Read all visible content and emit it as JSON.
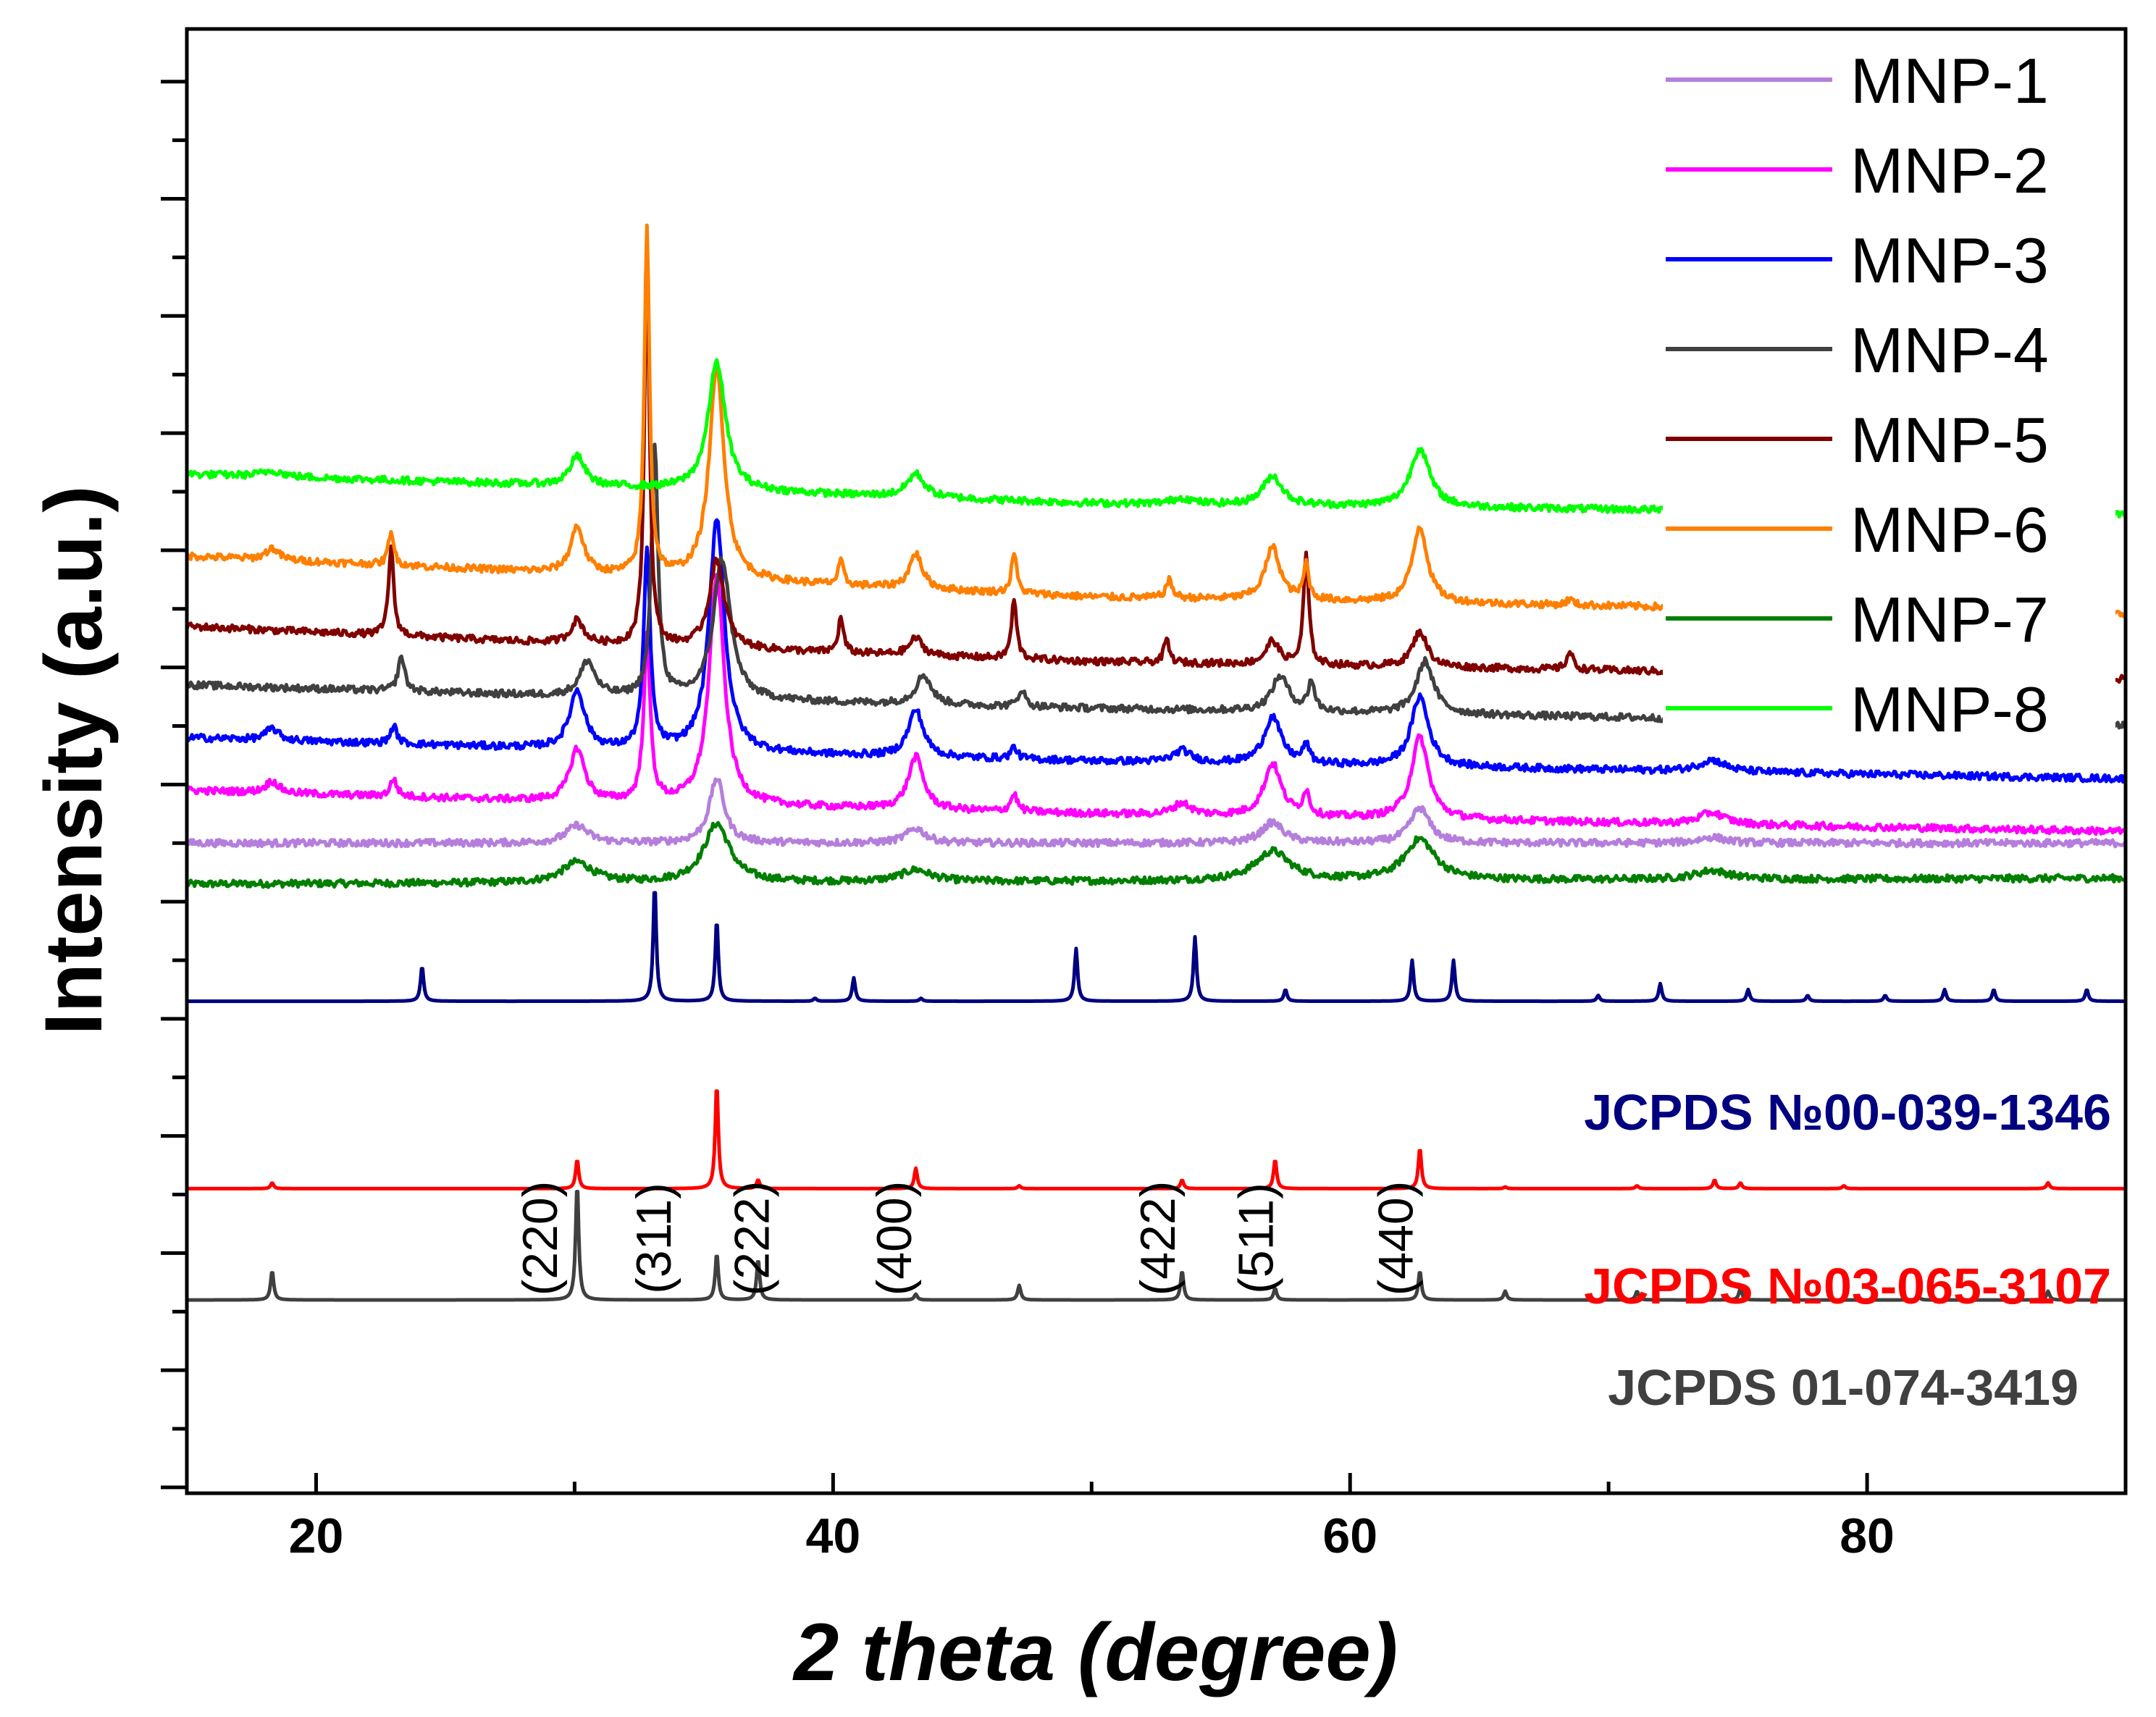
{
  "chart_data": {
    "type": "line",
    "title": "",
    "xlabel": "2 theta (degree)",
    "ylabel": "Intensity (a.u.)",
    "xlim": [
      15,
      90
    ],
    "x_ticks": [
      "20",
      "40",
      "60",
      "80"
    ],
    "y_ticks_labeled": false,
    "legend_position": "top-right",
    "legend": [
      {
        "name": "MNP-1",
        "color": "#b57edc"
      },
      {
        "name": "MNP-2",
        "color": "#ff00ff"
      },
      {
        "name": "MNP-3",
        "color": "#0000ff"
      },
      {
        "name": "MNP-4",
        "color": "#404040"
      },
      {
        "name": "MNP-5",
        "color": "#800000"
      },
      {
        "name": "MNP-6",
        "color": "#ff7f00"
      },
      {
        "name": "MNP-7",
        "color": "#007f00"
      },
      {
        "name": "MNP-8",
        "color": "#00ff00"
      }
    ],
    "series": [
      {
        "name": "MNP-7",
        "color": "#007f00",
        "offset": 12.4,
        "baseline": [
          [
            15,
            0.0
          ],
          [
            90,
            0.1
          ]
        ],
        "peaks": [
          [
            30.1,
            0.35,
            0.7
          ],
          [
            35.5,
            1.0,
            0.6
          ],
          [
            43.2,
            0.2,
            0.7
          ],
          [
            57.0,
            0.5,
            0.8
          ],
          [
            62.7,
            0.7,
            0.7
          ],
          [
            74.0,
            0.15,
            0.8
          ]
        ]
      },
      {
        "name": "MNP-1",
        "color": "#b57edc",
        "offset": 13.1,
        "baseline": [
          [
            15,
            0.0
          ],
          [
            90,
            0.0
          ]
        ],
        "peaks": [
          [
            30.1,
            0.3,
            0.5
          ],
          [
            35.5,
            1.1,
            0.35
          ],
          [
            43.2,
            0.25,
            0.45
          ],
          [
            57.0,
            0.35,
            0.5
          ],
          [
            62.7,
            0.6,
            0.45
          ],
          [
            74.0,
            0.1,
            0.6
          ]
        ]
      },
      {
        "name": "MNP-2",
        "color": "#ff00ff",
        "offset": 13.8,
        "baseline": [
          [
            15,
            0.2
          ],
          [
            30,
            0.0
          ],
          [
            50,
            -0.2
          ],
          [
            90,
            -0.5
          ]
        ],
        "peaks": [
          [
            18.3,
            0.2,
            0.3
          ],
          [
            23.0,
            0.3,
            0.15
          ],
          [
            30.1,
            0.9,
            0.35
          ],
          [
            32.8,
            2.8,
            0.15
          ],
          [
            35.5,
            3.9,
            0.35
          ],
          [
            43.2,
            0.9,
            0.35
          ],
          [
            47.0,
            0.3,
            0.15
          ],
          [
            53.5,
            0.2,
            0.4
          ],
          [
            57.0,
            0.9,
            0.4
          ],
          [
            58.3,
            0.4,
            0.15
          ],
          [
            62.7,
            1.4,
            0.4
          ],
          [
            74.0,
            0.2,
            0.6
          ]
        ]
      },
      {
        "name": "MNP-3",
        "color": "#0000ff",
        "offset": 14.7,
        "baseline": [
          [
            15,
            0.2
          ],
          [
            30,
            0.0
          ],
          [
            50,
            -0.2
          ],
          [
            90,
            -0.5
          ]
        ],
        "peaks": [
          [
            18.3,
            0.2,
            0.3
          ],
          [
            23.0,
            0.3,
            0.15
          ],
          [
            30.1,
            1.0,
            0.35
          ],
          [
            32.8,
            3.4,
            0.15
          ],
          [
            35.5,
            4.0,
            0.35
          ],
          [
            43.2,
            0.8,
            0.35
          ],
          [
            47.0,
            0.2,
            0.15
          ],
          [
            53.5,
            0.2,
            0.4
          ],
          [
            57.0,
            0.8,
            0.4
          ],
          [
            58.3,
            0.3,
            0.15
          ],
          [
            62.7,
            1.2,
            0.4
          ],
          [
            74.0,
            0.2,
            0.6
          ]
        ]
      },
      {
        "name": "MNP-4",
        "color": "#404040",
        "offset": 15.6,
        "baseline": [
          [
            15,
            0.2
          ],
          [
            30,
            0.0
          ],
          [
            50,
            -0.2
          ],
          [
            90,
            -0.5
          ]
        ],
        "peaks": [
          [
            23.3,
            0.6,
            0.15
          ],
          [
            30.5,
            0.6,
            0.35
          ],
          [
            33.1,
            4.3,
            0.15
          ],
          [
            35.7,
            2.4,
            0.4
          ],
          [
            43.5,
            0.5,
            0.35
          ],
          [
            47.3,
            0.3,
            0.15
          ],
          [
            57.3,
            0.6,
            0.4
          ],
          [
            58.5,
            0.5,
            0.15
          ],
          [
            62.9,
            0.9,
            0.4
          ]
        ]
      },
      {
        "name": "MNP-5",
        "color": "#800000",
        "offset": 16.5,
        "baseline": [
          [
            15,
            0.3
          ],
          [
            30,
            0.0
          ],
          [
            50,
            -0.3
          ],
          [
            90,
            -0.6
          ]
        ],
        "peaks": [
          [
            22.9,
            1.5,
            0.12
          ],
          [
            30.1,
            0.4,
            0.3
          ],
          [
            32.8,
            6.5,
            0.12
          ],
          [
            35.5,
            1.5,
            0.35
          ],
          [
            40.3,
            0.6,
            0.12
          ],
          [
            43.2,
            0.3,
            0.3
          ],
          [
            47.0,
            1.0,
            0.12
          ],
          [
            52.9,
            0.4,
            0.12
          ],
          [
            57.0,
            0.4,
            0.3
          ],
          [
            58.3,
            1.9,
            0.12
          ],
          [
            62.7,
            0.6,
            0.35
          ],
          [
            68.5,
            0.3,
            0.15
          ]
        ]
      },
      {
        "name": "MNP-6",
        "color": "#ff7f00",
        "offset": 17.6,
        "baseline": [
          [
            15,
            0.4
          ],
          [
            30,
            0.1
          ],
          [
            50,
            -0.3
          ],
          [
            90,
            -0.6
          ]
        ],
        "peaks": [
          [
            18.3,
            0.2,
            0.3
          ],
          [
            22.9,
            0.6,
            0.12
          ],
          [
            30.1,
            0.8,
            0.3
          ],
          [
            32.8,
            5.9,
            0.12
          ],
          [
            35.5,
            3.6,
            0.35
          ],
          [
            40.3,
            0.4,
            0.12
          ],
          [
            43.2,
            0.6,
            0.3
          ],
          [
            47.0,
            0.7,
            0.12
          ],
          [
            53.0,
            0.3,
            0.15
          ],
          [
            57.0,
            0.9,
            0.35
          ],
          [
            58.3,
            0.6,
            0.12
          ],
          [
            62.7,
            1.3,
            0.35
          ],
          [
            68.5,
            0.1,
            0.15
          ]
        ]
      },
      {
        "name": "MNP-8",
        "color": "#00ff00",
        "offset": 19.4,
        "baseline": [
          [
            15,
            0.0
          ],
          [
            30,
            -0.2
          ],
          [
            50,
            -0.5
          ],
          [
            90,
            -0.7
          ]
        ],
        "peaks": [
          [
            18.3,
            0.1,
            0.5
          ],
          [
            30.1,
            0.5,
            0.35
          ],
          [
            35.5,
            2.2,
            0.4
          ],
          [
            43.2,
            0.4,
            0.4
          ],
          [
            53.5,
            0.1,
            0.5
          ],
          [
            57.0,
            0.5,
            0.45
          ],
          [
            62.7,
            1.0,
            0.45
          ]
        ]
      }
    ],
    "references": [
      {
        "name": "JCPDS №00-039-1346",
        "color": "#000080",
        "offset": 10.4,
        "peaks": [
          [
            24.1,
            0.6
          ],
          [
            33.1,
            2.0
          ],
          [
            35.5,
            1.4
          ],
          [
            39.3,
            0.05
          ],
          [
            40.8,
            0.4
          ],
          [
            43.4,
            0.05
          ],
          [
            49.4,
            0.9
          ],
          [
            54.0,
            1.1
          ],
          [
            57.5,
            0.2
          ],
          [
            62.4,
            0.7
          ],
          [
            64.0,
            0.7
          ],
          [
            69.6,
            0.1
          ],
          [
            72.0,
            0.3
          ],
          [
            75.4,
            0.2
          ],
          [
            77.7,
            0.1
          ],
          [
            80.7,
            0.1
          ],
          [
            83.0,
            0.2
          ],
          [
            84.9,
            0.2
          ],
          [
            88.5,
            0.2
          ]
        ]
      },
      {
        "name": "JCPDS №03-065-3107",
        "color": "#ff0000",
        "offset": 7.2,
        "peaks": [
          [
            18.3,
            0.1
          ],
          [
            30.1,
            0.5
          ],
          [
            35.5,
            1.8
          ],
          [
            37.1,
            0.15
          ],
          [
            43.2,
            0.35
          ],
          [
            47.2,
            0.05
          ],
          [
            53.5,
            0.15
          ],
          [
            57.1,
            0.5
          ],
          [
            62.7,
            0.7
          ],
          [
            66.0,
            0.03
          ],
          [
            71.1,
            0.05
          ],
          [
            74.1,
            0.15
          ],
          [
            75.1,
            0.1
          ],
          [
            79.1,
            0.05
          ],
          [
            87.0,
            0.1
          ]
        ]
      },
      {
        "name": "JCPDS 01-074-3419",
        "color": "#404040",
        "offset": 5.3,
        "peaks": [
          [
            18.3,
            0.5
          ],
          [
            30.1,
            2.0
          ],
          [
            35.5,
            0.8
          ],
          [
            37.1,
            0.7
          ],
          [
            43.2,
            0.1
          ],
          [
            47.2,
            0.25
          ],
          [
            53.5,
            0.5
          ],
          [
            57.1,
            0.2
          ],
          [
            62.7,
            0.5
          ],
          [
            66.0,
            0.15
          ],
          [
            71.1,
            0.15
          ],
          [
            75.1,
            0.2
          ],
          [
            82.0,
            0.05
          ],
          [
            87.0,
            0.15
          ]
        ]
      }
    ],
    "annotations": [
      {
        "text": "(220)",
        "x": 28.7
      },
      {
        "text": "(311)",
        "x": 33.1
      },
      {
        "text": "(222)",
        "x": 36.9
      },
      {
        "text": "(400)",
        "x": 42.4
      },
      {
        "text": "(422)",
        "x": 52.6
      },
      {
        "text": "(511)",
        "x": 56.4
      },
      {
        "text": "(440)",
        "x": 61.8
      }
    ]
  }
}
